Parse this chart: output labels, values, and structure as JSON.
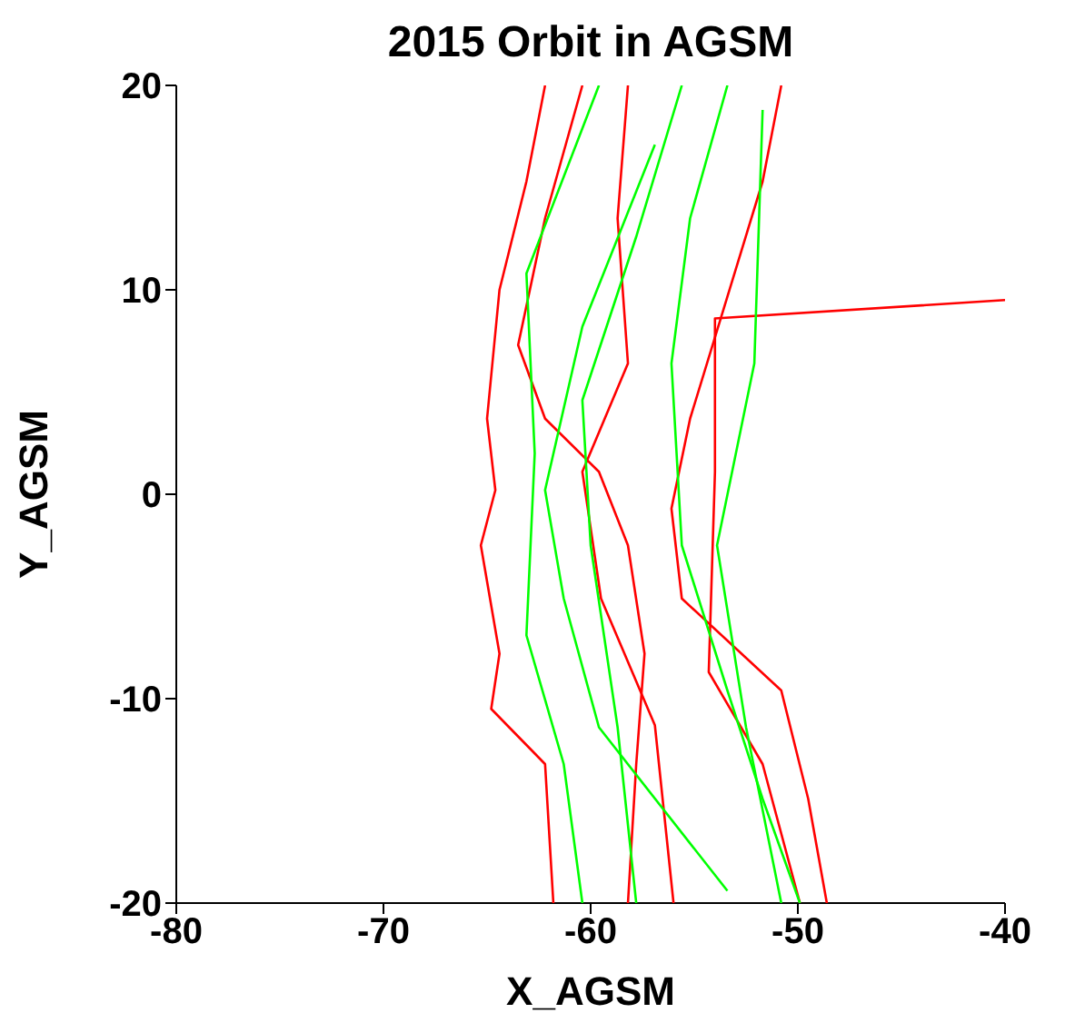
{
  "chart_data": {
    "type": "line",
    "title": "2015 Orbit in AGSM",
    "xlabel": "X_AGSM",
    "ylabel": "Y_AGSM",
    "xlim": [
      -80,
      -40
    ],
    "xticks": [
      -80,
      -70,
      -60,
      -50,
      -40
    ],
    "ylim": [
      -20,
      20
    ],
    "yticks": [
      -20,
      -10,
      0,
      10,
      20
    ],
    "grid": false,
    "legend": false,
    "series": [
      {
        "color": "#ff0000",
        "x": [
          -62.2,
          -63.1,
          -64.4,
          -65.0,
          -64.6,
          -65.3,
          -64.4,
          -64.8,
          -62.2,
          -61.8
        ],
        "values": [
          20,
          15.3,
          10.0,
          3.7,
          0.2,
          -2.5,
          -7.8,
          -10.5,
          -13.2,
          -20
        ]
      },
      {
        "color": "#ff0000",
        "x": [
          -40,
          -54.0,
          -54.0,
          -54.3,
          -51.7,
          -49.9
        ],
        "values": [
          9.5,
          8.6,
          1.1,
          -8.7,
          -13.2,
          -20
        ]
      },
      {
        "color": "#ff0000",
        "x": [
          -58.2,
          -58.7,
          -58.2,
          -60.4,
          -59.5,
          -56.9,
          -56.0
        ],
        "values": [
          20,
          13.5,
          6.4,
          1.1,
          -5.1,
          -11.3,
          -20
        ]
      },
      {
        "color": "#ff0000",
        "x": [
          -60.4,
          -62.2,
          -63.5,
          -62.2,
          -59.6,
          -58.2,
          -57.4,
          -57.8,
          -58.2
        ],
        "values": [
          20,
          13.5,
          7.3,
          3.7,
          1.1,
          -2.5,
          -7.8,
          -13.2,
          -20
        ]
      },
      {
        "color": "#ff0000",
        "x": [
          -50.8,
          -51.7,
          -55.2,
          -56.1,
          -55.6,
          -50.8,
          -49.5,
          -48.6
        ],
        "values": [
          20,
          15.3,
          3.7,
          -0.7,
          -5.1,
          -9.6,
          -14.9,
          -20
        ]
      },
      {
        "color": "#00ff00",
        "x": [
          -59.6,
          -63.1,
          -62.7,
          -63.1,
          -61.3,
          -60.4
        ],
        "values": [
          20,
          10.8,
          2.0,
          -6.9,
          -13.2,
          -20
        ]
      },
      {
        "color": "#00ff00",
        "x": [
          -55.6,
          -57.8,
          -60.4,
          -60.0,
          -58.7,
          -57.8
        ],
        "values": [
          20,
          12.6,
          4.6,
          -2.5,
          -11.4,
          -20
        ]
      },
      {
        "color": "#00ff00",
        "x": [
          -53.4,
          -55.2,
          -56.1,
          -55.6,
          -53.4,
          -51.7,
          -49.9
        ],
        "values": [
          20,
          13.5,
          6.4,
          -2.5,
          -9.6,
          -14.9,
          -20
        ]
      },
      {
        "color": "#00ff00",
        "x": [
          -56.9,
          -60.4,
          -62.2,
          -61.3,
          -59.6,
          -53.4
        ],
        "values": [
          17.1,
          8.2,
          0.2,
          -5.1,
          -11.4,
          -19.4
        ]
      },
      {
        "color": "#00ff00",
        "x": [
          -51.7,
          -52.1,
          -53.9,
          -52.5,
          -50.8
        ],
        "values": [
          18.8,
          6.4,
          -2.5,
          -11.4,
          -20
        ]
      }
    ]
  }
}
